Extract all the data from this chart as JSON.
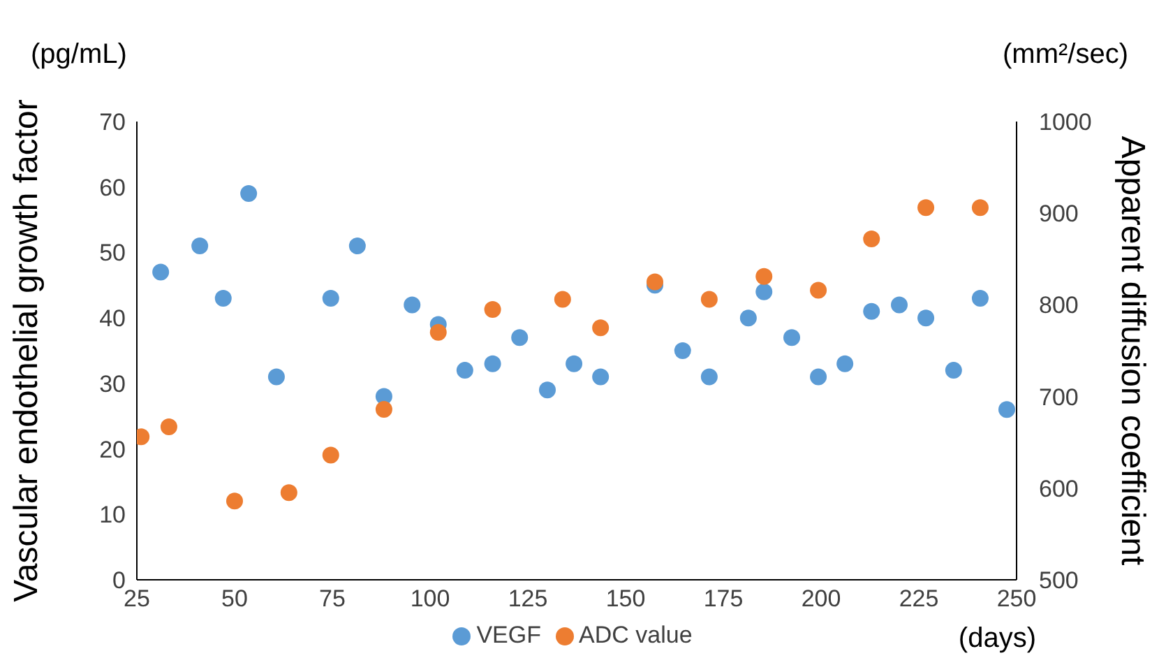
{
  "chart_data": {
    "type": "scatter",
    "ylabel": "Vascular endothelial growth factor",
    "y2label": "Apparent diffusion coefficient",
    "annotations": [
      "(pg/mL)",
      "(mm²/sec)",
      "(days)"
    ],
    "xlim": [
      25,
      250
    ],
    "xticks": [
      25,
      50,
      75,
      100,
      125,
      150,
      175,
      200,
      225,
      250
    ],
    "ylim": [
      0,
      70
    ],
    "yticks": [
      0,
      10,
      20,
      30,
      40,
      50,
      60,
      70
    ],
    "y2lim": [
      500,
      1000
    ],
    "y2ticks": [
      500,
      600,
      700,
      800,
      900,
      1000
    ],
    "grid": false,
    "legend": "bottom",
    "marker": "circle",
    "series": [
      {
        "name": "VEGF",
        "color": "#5b9bd5",
        "x": [
          31.1,
          41.1,
          47.1,
          53.6,
          60.7,
          74.6,
          81.4,
          88.2,
          95.4,
          102.1,
          108.9,
          116,
          122.9,
          130,
          136.8,
          143.6,
          157.5,
          164.6,
          171.4,
          181.4,
          185.4,
          192.5,
          199.3,
          206.1,
          212.9,
          220,
          226.8,
          233.9,
          240.7,
          247.5
        ],
        "values": [
          47,
          51,
          43,
          59,
          31,
          43,
          51,
          28,
          42,
          39,
          32,
          33,
          37,
          29,
          33,
          31,
          45,
          35,
          31,
          40,
          44,
          37,
          31,
          33,
          41,
          42,
          40,
          32,
          43,
          26
        ]
      },
      {
        "name": "ADC value",
        "color": "#ed7d31",
        "axis": "y2",
        "x": [
          26.1,
          33.2,
          50,
          63.9,
          74.6,
          88.2,
          102.1,
          116,
          133.9,
          143.6,
          157.5,
          171.4,
          185.4,
          199.3,
          212.9,
          226.8,
          240.7
        ],
        "values": [
          656,
          667,
          586,
          595,
          636,
          686,
          770,
          795,
          806,
          775,
          825,
          806,
          831,
          816,
          872,
          906,
          906
        ]
      }
    ]
  }
}
